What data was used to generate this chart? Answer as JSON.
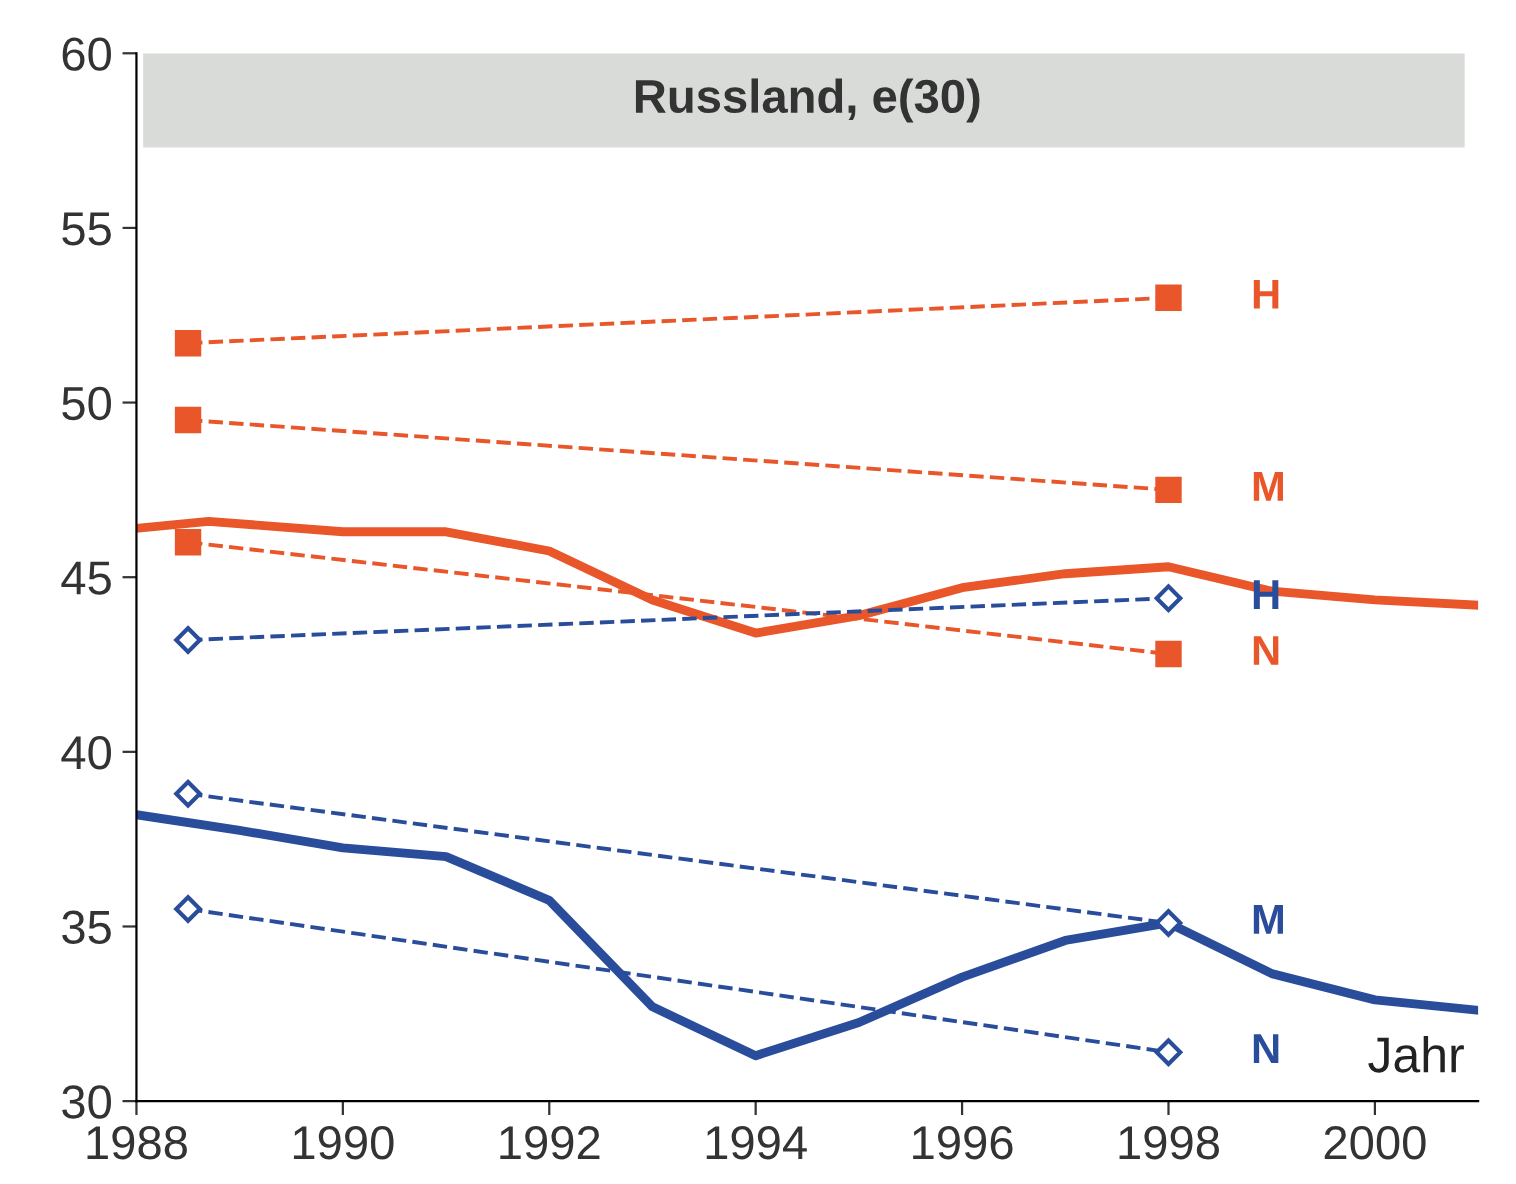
{
  "chart_data": {
    "type": "line",
    "title": "Russland, e(30)",
    "xlabel": "Jahr",
    "xlim": [
      1988,
      2001
    ],
    "xticks": [
      1988,
      1990,
      1992,
      1994,
      1996,
      1998,
      2000
    ],
    "ylim": [
      30,
      60
    ],
    "yticks": [
      30,
      35,
      40,
      45,
      50,
      55,
      60
    ],
    "grid": false,
    "bands": [
      {
        "axis": "y",
        "from": 57.3,
        "to": 60,
        "color": "#d9dbd9"
      }
    ],
    "series": [
      {
        "color": "#e8562a",
        "line_style": "solid",
        "marker": "none",
        "x": [
          1988,
          1988.7,
          1990,
          1991,
          1992,
          1993,
          1994,
          1995,
          1996,
          1997,
          1998,
          1999,
          2000,
          2001
        ],
        "values": [
          46.4,
          46.6,
          46.3,
          46.3,
          45.75,
          44.35,
          43.4,
          43.9,
          44.7,
          45.1,
          45.3,
          44.6,
          44.35,
          44.2
        ]
      },
      {
        "color": "#2a4d9b",
        "line_style": "solid",
        "marker": "none",
        "x": [
          1988,
          1989,
          1990,
          1991,
          1992,
          1993,
          1994,
          1995,
          1996,
          1997,
          1998,
          1999,
          2000,
          2001
        ],
        "values": [
          38.2,
          37.75,
          37.25,
          37.0,
          35.75,
          32.7,
          31.3,
          32.25,
          33.55,
          34.6,
          35.1,
          33.65,
          32.9,
          32.6
        ]
      },
      {
        "name": "H",
        "color": "#e8562a",
        "line_style": "dashed",
        "marker": "square",
        "x": [
          1988.5,
          1998
        ],
        "values": [
          51.7,
          53.0
        ]
      },
      {
        "name": "M",
        "color": "#e8562a",
        "line_style": "dashed",
        "marker": "square",
        "x": [
          1988.5,
          1998
        ],
        "values": [
          49.5,
          47.5
        ]
      },
      {
        "name": "N",
        "color": "#e8562a",
        "line_style": "dashed",
        "marker": "square",
        "x": [
          1988.5,
          1998
        ],
        "values": [
          46.0,
          42.8
        ]
      },
      {
        "name": "H",
        "color": "#2a4d9b",
        "line_style": "dashed",
        "marker": "diamond",
        "x": [
          1988.5,
          1998
        ],
        "values": [
          43.2,
          44.4
        ]
      },
      {
        "name": "M",
        "color": "#2a4d9b",
        "line_style": "dashed",
        "marker": "diamond",
        "x": [
          1988.5,
          1998
        ],
        "values": [
          38.8,
          35.1
        ]
      },
      {
        "name": "N",
        "color": "#2a4d9b",
        "line_style": "dashed",
        "marker": "diamond",
        "x": [
          1988.5,
          1998
        ],
        "values": [
          35.5,
          31.4
        ]
      }
    ]
  }
}
